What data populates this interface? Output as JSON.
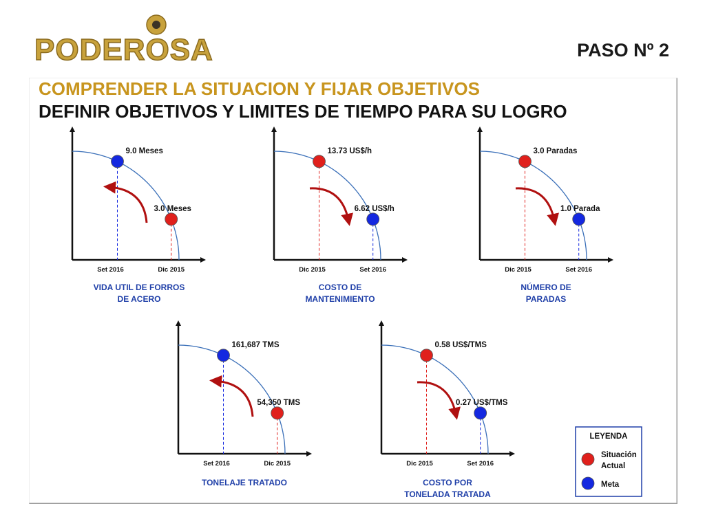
{
  "header": {
    "logo_text": "PODEROSA",
    "step": "PASO  Nº 2",
    "title_line1": "COMPRENDER LA SITUACION Y FIJAR OBJETIVOS",
    "title_line2": "DEFINIR OBJETIVOS Y LIMITES DE TIEMPO PARA SU LOGRO"
  },
  "colors": {
    "situacion_actual": "#e0201c",
    "meta": "#1428e0",
    "curve": "#3a6fb8",
    "arrow": "#b01010",
    "caption": "#1f3fa8",
    "title_gold": "#c8951e"
  },
  "charts": [
    {
      "id": "vida-util",
      "caption_line1": "VIDA UTIL DE FORROS",
      "caption_line2": "DE ACERO",
      "upper_label": "9.0 Meses",
      "upper_status": "meta",
      "lower_label": "3.0 Meses",
      "lower_status": "situacion_actual",
      "tick_left": "Set 2016",
      "tick_right": "Dic 2015",
      "arrow_direction": "counter-clockwise"
    },
    {
      "id": "costo-mantenimiento",
      "caption_line1": "COSTO DE",
      "caption_line2": "MANTENIMIENTO",
      "upper_label": "13.73 US$/h",
      "upper_status": "situacion_actual",
      "lower_label": "6.62 US$/h",
      "lower_status": "meta",
      "tick_left": "Dic 2015",
      "tick_right": "Set 2016",
      "arrow_direction": "clockwise"
    },
    {
      "id": "numero-paradas",
      "caption_line1": "NÚMERO DE",
      "caption_line2": "PARADAS",
      "upper_label": "3.0 Paradas",
      "upper_status": "situacion_actual",
      "lower_label": "1.0 Parada",
      "lower_status": "meta",
      "tick_left": "Dic 2015",
      "tick_right": "Set 2016",
      "arrow_direction": "clockwise"
    },
    {
      "id": "tonelaje-tratado",
      "caption_line1": "TONELAJE TRATADO",
      "caption_line2": "",
      "upper_label": "161,687  TMS",
      "upper_status": "meta",
      "lower_label": "54,350 TMS",
      "lower_status": "situacion_actual",
      "tick_left": "Set 2016",
      "tick_right": "Dic 2015",
      "arrow_direction": "counter-clockwise"
    },
    {
      "id": "costo-tonelada",
      "caption_line1": "COSTO POR",
      "caption_line2": "TONELADA TRATADA",
      "upper_label": "0.58 US$/TMS",
      "upper_status": "situacion_actual",
      "lower_label": "0.27 US$/TMS",
      "lower_status": "meta",
      "tick_left": "Dic 2015",
      "tick_right": "Set 2016",
      "arrow_direction": "clockwise"
    }
  ],
  "legend": {
    "title": "LEYENDA",
    "actual_line1": "Situación",
    "actual_line2": "Actual",
    "meta": "Meta"
  }
}
